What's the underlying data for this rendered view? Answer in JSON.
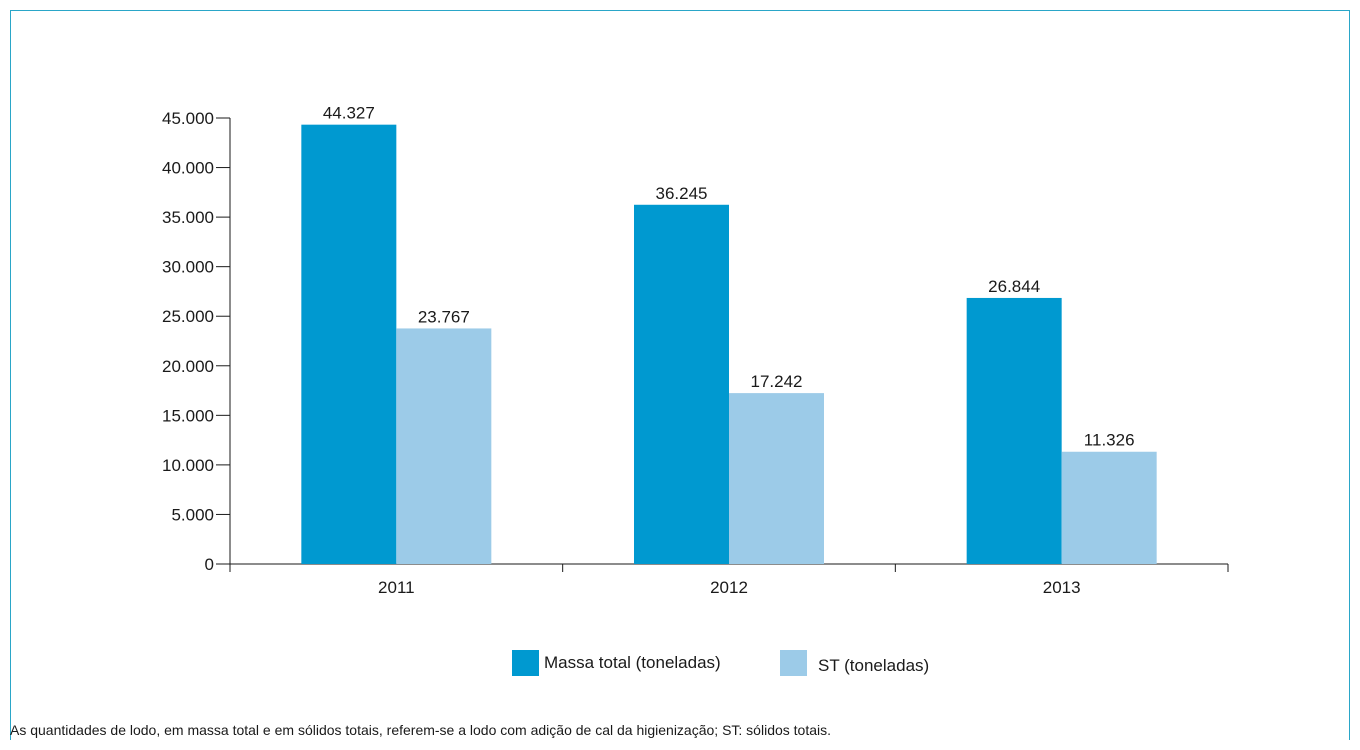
{
  "chart_data": {
    "type": "bar",
    "categories": [
      "2011",
      "2012",
      "2013"
    ],
    "series": [
      {
        "name": "Massa total (toneladas)",
        "values": [
          44327,
          36245,
          26844
        ],
        "labels": [
          "44.327",
          "36.245",
          "26.844"
        ],
        "color": "#0099d0"
      },
      {
        "name": "ST (toneladas)",
        "values": [
          23767,
          17242,
          11326
        ],
        "labels": [
          "23.767",
          "17.242",
          "11.326"
        ],
        "color": "#9ccbe8"
      }
    ],
    "ylim": [
      0,
      45000
    ],
    "yticks": [
      0,
      5000,
      10000,
      15000,
      20000,
      25000,
      30000,
      35000,
      40000,
      45000
    ],
    "ytick_labels": [
      "0",
      "5.000",
      "10.000",
      "15.000",
      "20.000",
      "25.000",
      "30.000",
      "35.000",
      "40.000",
      "45.000"
    ],
    "grid": false,
    "legend_position": "bottom-center"
  },
  "footnote": "As quantidades de lodo, em massa total e em sólidos totais, referem-se a lodo com adição de cal da higienização; ST: sólidos totais.",
  "colors": {
    "frame": "#2aa6c8",
    "axis": "#1a1a1a"
  }
}
